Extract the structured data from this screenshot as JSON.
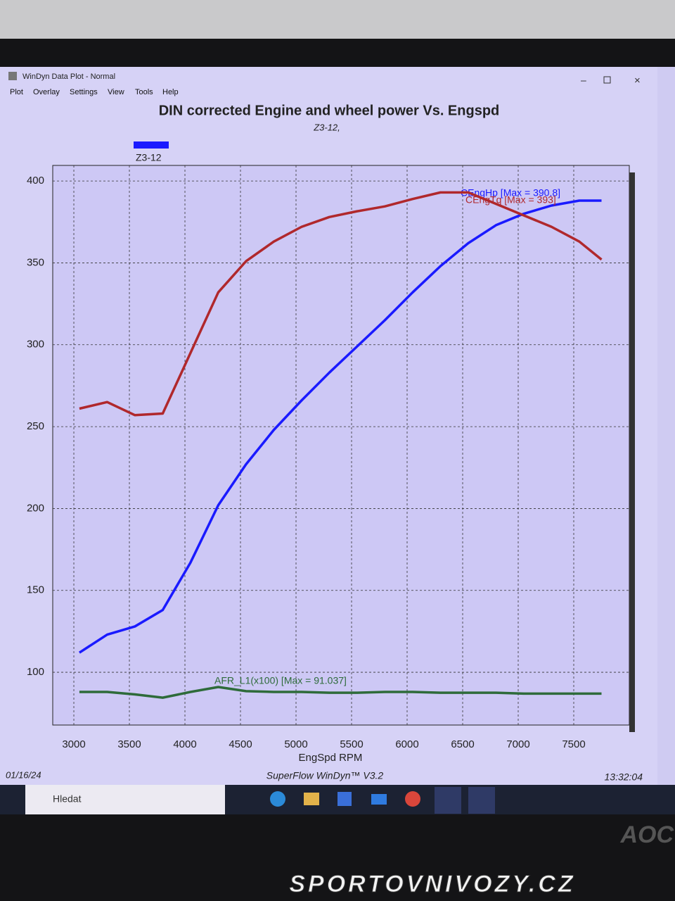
{
  "window": {
    "title": "WinDyn Data Plot - Normal",
    "menu": [
      "Plot",
      "Overlay",
      "Settings",
      "View",
      "Tools",
      "Help"
    ]
  },
  "chart_data": {
    "type": "line",
    "title": "DIN corrected Engine and wheel power Vs. Engspd",
    "subtitle": "Z3-12,",
    "legend": {
      "label": "Z3-12",
      "color": "#1a1aff"
    },
    "x_label": "EngSpd RPM",
    "x": [
      3050,
      3300,
      3550,
      3800,
      4050,
      4300,
      4550,
      4800,
      5050,
      5300,
      5550,
      5800,
      6050,
      6300,
      6550,
      6800,
      7050,
      7300,
      7550,
      7750
    ],
    "series": [
      {
        "name": "CEngHp [Max = 390.8]",
        "color": "#1a1aff",
        "values": [
          112,
          123,
          128,
          138,
          167,
          202,
          227,
          248,
          266,
          283,
          299,
          315,
          332,
          348,
          362,
          373,
          380,
          385,
          388,
          388
        ]
      },
      {
        "name": "CEngTq [Max = 393]",
        "color": "#b0282c",
        "values": [
          261,
          265,
          257,
          258,
          295,
          332,
          351,
          363,
          372,
          378,
          381.5,
          384.5,
          389,
          393,
          393,
          386,
          379,
          372,
          363,
          352
        ]
      },
      {
        "name": "AFR_L1(x100) [Max = 91.037]",
        "color": "#2e6b3a",
        "values": [
          88,
          88,
          86.5,
          84.5,
          88,
          91,
          88.5,
          88,
          88,
          87.5,
          87.5,
          88,
          88,
          87.5,
          87.5,
          87.5,
          87,
          87,
          87,
          87
        ]
      }
    ],
    "xlim": [
      2810,
      8000
    ],
    "ylim": [
      67.8,
      409.5
    ],
    "xticks": [
      3000,
      3500,
      4000,
      4500,
      5000,
      5500,
      6000,
      6500,
      7000,
      7500
    ],
    "yticks": [
      100,
      150,
      200,
      250,
      300,
      350,
      400
    ],
    "grid": true,
    "footer": {
      "date": "01/16/24",
      "product": "SuperFlow WinDyn™ V3.2",
      "time": "13:32:04"
    }
  },
  "taskbar": {
    "search": "Hledat"
  },
  "watermark": "SPORTOVNIVOZY.CZ",
  "monitor_brand": "AOC"
}
